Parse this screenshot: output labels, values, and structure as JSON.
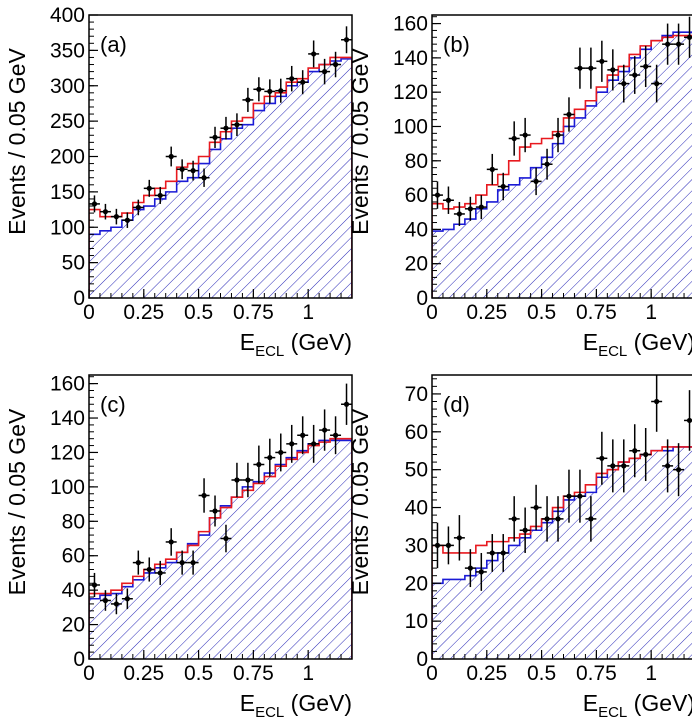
{
  "colors": {
    "data_points": "#000000",
    "fit_total": "#e8191f",
    "background": "#1a1ad6",
    "hatch": "#2a2ab8"
  },
  "chart_data": [
    {
      "type": "histogram",
      "panel_label": "(a)",
      "ylabel": "Events / 0.05 GeV",
      "xlabel": "E_ECL (GeV)",
      "xlim": [
        0,
        1.2
      ],
      "ylim": [
        0,
        400
      ],
      "yticks": [
        0,
        50,
        100,
        150,
        200,
        250,
        300,
        350,
        400
      ],
      "xticks": [
        0,
        0.25,
        0.5,
        0.75,
        1
      ],
      "xtick_labels": [
        "0",
        "0.25",
        "0.5",
        "0.75",
        "1"
      ],
      "bin_width": 0.05,
      "data": [
        133,
        122,
        115,
        110,
        128,
        155,
        145,
        200,
        182,
        180,
        170,
        227,
        240,
        245,
        280,
        295,
        292,
        293,
        310,
        305,
        345,
        320,
        330,
        365
      ],
      "data_err": [
        12,
        11,
        11,
        11,
        11,
        12,
        12,
        14,
        14,
        14,
        13,
        15,
        16,
        16,
        17,
        17,
        17,
        17,
        18,
        17,
        19,
        18,
        18,
        19
      ],
      "background": [
        90,
        95,
        100,
        110,
        125,
        130,
        140,
        150,
        165,
        170,
        190,
        210,
        225,
        240,
        245,
        265,
        275,
        285,
        300,
        305,
        320,
        330,
        335,
        338
      ],
      "total_fit": [
        125,
        115,
        115,
        120,
        135,
        145,
        155,
        165,
        185,
        190,
        200,
        220,
        235,
        250,
        255,
        275,
        285,
        290,
        305,
        310,
        325,
        330,
        340,
        340
      ]
    },
    {
      "type": "histogram",
      "panel_label": "(b)",
      "ylabel": "Events / 0.05 GeV",
      "xlabel": "E_ECL (GeV)",
      "xlim": [
        0,
        1.2
      ],
      "ylim": [
        0,
        165
      ],
      "yticks": [
        0,
        20,
        40,
        60,
        80,
        100,
        120,
        140,
        160
      ],
      "xticks": [
        0,
        0.25,
        0.5,
        0.75,
        1
      ],
      "xtick_labels": [
        "0",
        "0.25",
        "0.5",
        "0.75",
        "1"
      ],
      "bin_width": 0.05,
      "data": [
        60,
        57,
        49,
        52,
        53,
        75,
        65,
        93,
        95,
        68,
        78,
        95,
        107,
        134,
        134,
        138,
        133,
        125,
        130,
        135,
        125,
        148,
        148,
        152
      ],
      "data_err": [
        8,
        8,
        7,
        7,
        7,
        9,
        8,
        10,
        10,
        8,
        9,
        10,
        10,
        12,
        12,
        12,
        12,
        11,
        11,
        12,
        11,
        12,
        12,
        12
      ],
      "background": [
        39,
        40,
        43,
        46,
        52,
        56,
        63,
        66,
        70,
        76,
        82,
        90,
        100,
        105,
        112,
        120,
        127,
        132,
        140,
        145,
        150,
        153,
        155,
        155
      ],
      "total_fit": [
        55,
        52,
        53,
        55,
        60,
        66,
        72,
        80,
        88,
        90,
        93,
        97,
        105,
        110,
        115,
        123,
        130,
        135,
        142,
        147,
        150,
        152,
        153,
        153
      ]
    },
    {
      "type": "histogram",
      "panel_label": "(c)",
      "ylabel": "Events / 0.05 GeV",
      "xlabel": "E_ECL (GeV)",
      "xlim": [
        0,
        1.2
      ],
      "ylim": [
        0,
        165
      ],
      "yticks": [
        0,
        20,
        40,
        60,
        80,
        100,
        120,
        140,
        160
      ],
      "xticks": [
        0,
        0.25,
        0.5,
        0.75,
        1
      ],
      "xtick_labels": [
        "0",
        "0.25",
        "0.5",
        "0.75",
        "1"
      ],
      "bin_width": 0.05,
      "data": [
        43,
        34,
        32,
        35,
        56,
        52,
        50,
        68,
        56,
        56,
        95,
        86,
        70,
        104,
        104,
        113,
        117,
        120,
        125,
        130,
        125,
        133,
        130,
        148
      ],
      "data_err": [
        7,
        6,
        6,
        6,
        7,
        7,
        7,
        8,
        7,
        7,
        10,
        9,
        8,
        10,
        10,
        11,
        11,
        11,
        11,
        11,
        11,
        12,
        11,
        12
      ],
      "background": [
        35,
        37,
        38,
        42,
        46,
        50,
        53,
        56,
        62,
        67,
        72,
        82,
        89,
        94,
        100,
        103,
        108,
        113,
        117,
        121,
        125,
        127,
        127,
        127
      ],
      "total_fit": [
        38,
        38,
        40,
        44,
        48,
        52,
        55,
        58,
        62,
        66,
        74,
        82,
        88,
        94,
        98,
        102,
        106,
        112,
        116,
        120,
        124,
        126,
        128,
        128
      ]
    },
    {
      "type": "histogram",
      "panel_label": "(d)",
      "ylabel": "Events / 0.05 GeV",
      "xlabel": "E_ECL (GeV)",
      "xlim": [
        0,
        1.2
      ],
      "ylim": [
        0,
        75
      ],
      "yticks": [
        0,
        10,
        20,
        30,
        40,
        50,
        60,
        70
      ],
      "xticks": [
        0,
        0.25,
        0.5,
        0.75,
        1
      ],
      "xtick_labels": [
        "0",
        "0.25",
        "0.5",
        "0.75",
        "1"
      ],
      "bin_width": 0.05,
      "data": [
        30,
        30,
        32,
        24,
        23,
        28,
        28,
        37,
        34,
        40,
        37,
        37,
        43,
        43,
        37,
        53,
        51,
        51,
        55,
        54,
        68,
        51,
        50,
        63
      ],
      "data_err": [
        6,
        5,
        6,
        5,
        5,
        5,
        5,
        6,
        6,
        6,
        6,
        6,
        7,
        7,
        6,
        7,
        7,
        7,
        7,
        7,
        8,
        7,
        7,
        8
      ],
      "background": [
        20,
        21,
        21,
        22,
        24,
        26,
        28,
        30,
        32,
        34,
        36,
        39,
        42,
        43,
        44,
        48,
        50,
        52,
        53,
        54,
        55,
        55,
        56,
        56
      ],
      "total_fit": [
        30,
        28,
        28,
        28,
        30,
        31,
        31,
        32,
        33,
        35,
        37,
        40,
        43,
        44,
        46,
        49,
        50,
        52,
        53,
        54,
        55,
        56,
        56,
        56
      ]
    }
  ]
}
